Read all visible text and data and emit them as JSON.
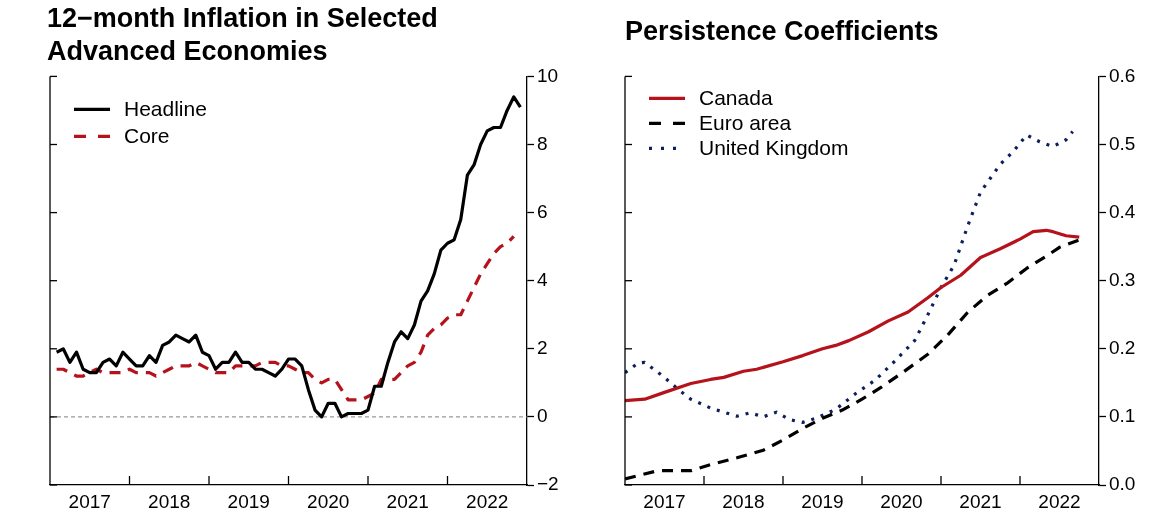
{
  "chart_data": [
    {
      "type": "line",
      "title": "12−month Inflation in Selected Advanced Economies",
      "x": [
        "2017-02",
        "2017-03",
        "2017-04",
        "2017-05",
        "2017-06",
        "2017-07",
        "2017-08",
        "2017-09",
        "2017-10",
        "2017-11",
        "2017-12",
        "2018-01",
        "2018-02",
        "2018-03",
        "2018-04",
        "2018-05",
        "2018-06",
        "2018-07",
        "2018-08",
        "2018-09",
        "2018-10",
        "2018-11",
        "2018-12",
        "2019-01",
        "2019-02",
        "2019-03",
        "2019-04",
        "2019-05",
        "2019-06",
        "2019-07",
        "2019-08",
        "2019-09",
        "2019-10",
        "2019-11",
        "2019-12",
        "2020-01",
        "2020-02",
        "2020-03",
        "2020-04",
        "2020-05",
        "2020-06",
        "2020-07",
        "2020-08",
        "2020-09",
        "2020-10",
        "2020-11",
        "2020-12",
        "2021-01",
        "2021-02",
        "2021-03",
        "2021-04",
        "2021-05",
        "2021-06",
        "2021-07",
        "2021-08",
        "2021-09",
        "2021-10",
        "2021-11",
        "2021-12",
        "2022-01",
        "2022-02",
        "2022-03",
        "2022-04",
        "2022-05",
        "2022-06",
        "2022-07",
        "2022-08",
        "2022-09",
        "2022-10",
        "2022-11",
        "2022-12"
      ],
      "series": [
        {
          "name": "Headline",
          "color": "#000000",
          "line_style": "solid",
          "values": [
            1.9,
            2.0,
            1.6,
            1.9,
            1.4,
            1.3,
            1.3,
            1.6,
            1.7,
            1.5,
            1.9,
            1.7,
            1.5,
            1.5,
            1.8,
            1.6,
            2.1,
            2.2,
            2.4,
            2.3,
            2.2,
            2.4,
            1.9,
            1.8,
            1.4,
            1.6,
            1.6,
            1.9,
            1.6,
            1.6,
            1.4,
            1.4,
            1.3,
            1.2,
            1.4,
            1.7,
            1.7,
            1.5,
            0.8,
            0.2,
            0.0,
            0.4,
            0.4,
            0.0,
            0.1,
            0.1,
            0.1,
            0.2,
            0.9,
            0.9,
            1.6,
            2.2,
            2.5,
            2.3,
            2.7,
            3.4,
            3.7,
            4.2,
            4.9,
            5.1,
            5.2,
            5.8,
            7.1,
            7.4,
            8.0,
            8.4,
            8.5,
            8.5,
            9.0,
            9.4,
            9.1
          ]
        },
        {
          "name": "Core",
          "color": "#b5121b",
          "line_style": "dashed",
          "values": [
            1.4,
            1.4,
            1.3,
            1.2,
            1.2,
            1.3,
            1.4,
            1.3,
            1.3,
            1.3,
            1.3,
            1.4,
            1.3,
            1.3,
            1.3,
            1.2,
            1.3,
            1.4,
            1.5,
            1.5,
            1.5,
            1.6,
            1.5,
            1.4,
            1.3,
            1.3,
            1.3,
            1.5,
            1.5,
            1.5,
            1.5,
            1.6,
            1.6,
            1.6,
            1.5,
            1.5,
            1.4,
            1.3,
            1.3,
            1.1,
            1.0,
            1.1,
            1.1,
            0.8,
            0.5,
            0.5,
            0.5,
            0.6,
            0.7,
            1.1,
            1.1,
            1.1,
            1.3,
            1.5,
            1.6,
            1.9,
            2.4,
            2.6,
            2.7,
            2.9,
            3.0,
            3.0,
            3.4,
            3.8,
            4.2,
            4.5,
            4.8,
            5.0,
            5.1,
            5.3,
            null
          ]
        }
      ],
      "xlim": [
        "2017-01",
        "2023-01"
      ],
      "xticks": [
        {
          "value": "2017-07",
          "label": "2017"
        },
        {
          "value": "2018-01",
          "label": null
        },
        {
          "value": "2018-07",
          "label": "2018"
        },
        {
          "value": "2019-01",
          "label": null
        },
        {
          "value": "2019-07",
          "label": "2019"
        },
        {
          "value": "2020-01",
          "label": null
        },
        {
          "value": "2020-07",
          "label": "2020"
        },
        {
          "value": "2021-01",
          "label": null
        },
        {
          "value": "2021-07",
          "label": "2021"
        },
        {
          "value": "2022-01",
          "label": null
        },
        {
          "value": "2022-07",
          "label": "2022"
        }
      ],
      "ylim": [
        -2,
        10
      ],
      "yticks": [
        {
          "value": -2,
          "label": "−2"
        },
        0,
        2,
        4,
        6,
        8,
        10
      ],
      "ref_lines": [
        {
          "axis": "y",
          "value": 0,
          "color": "#808080",
          "line_style": "dashed"
        }
      ],
      "grid": false,
      "legend": "top left",
      "marker": "none"
    },
    {
      "type": "line",
      "title": "Persistence Coefficients",
      "series": [
        {
          "name": "Canada",
          "color": "#b5121b",
          "line_style": "solid",
          "x": [
            "2017-01",
            "2017-04",
            "2017-07",
            "2017-11",
            "2018-02",
            "2018-04",
            "2018-07",
            "2018-09",
            "2019-01",
            "2019-04",
            "2019-07",
            "2019-09",
            "2019-11",
            "2020-02",
            "2020-05",
            "2020-08",
            "2020-11",
            "2021-01",
            "2021-04",
            "2021-07",
            "2021-10",
            "2022-01",
            "2022-03",
            "2022-05",
            "2022-06",
            "2022-08",
            "2022-10"
          ],
          "values": [
            0.124,
            0.126,
            0.136,
            0.149,
            0.155,
            0.158,
            0.167,
            0.17,
            0.181,
            0.19,
            0.2,
            0.205,
            0.212,
            0.225,
            0.241,
            0.254,
            0.275,
            0.29,
            0.308,
            0.334,
            0.347,
            0.361,
            0.372,
            0.374,
            0.372,
            0.366,
            0.364
          ]
        },
        {
          "name": "Euro area",
          "color": "#000000",
          "line_style": "dashed",
          "x": [
            "2017-01",
            "2017-06",
            "2017-11",
            "2018-02",
            "2018-06",
            "2018-10",
            "2019-01",
            "2019-04",
            "2019-07",
            "2019-10",
            "2020-01",
            "2020-04",
            "2020-07",
            "2020-11",
            "2021-02",
            "2021-05",
            "2021-08",
            "2021-11",
            "2022-02",
            "2022-05",
            "2022-07",
            "2022-10"
          ],
          "values": [
            0.009,
            0.021,
            0.021,
            0.03,
            0.04,
            0.051,
            0.066,
            0.083,
            0.098,
            0.11,
            0.126,
            0.144,
            0.164,
            0.192,
            0.22,
            0.253,
            0.278,
            0.296,
            0.318,
            0.336,
            0.349,
            0.36
          ]
        },
        {
          "name": "United Kingdom",
          "color": "#0d1f5c",
          "line_style": "dotted",
          "x": [
            "2017-01",
            "2017-03",
            "2017-04",
            "2017-07",
            "2017-09",
            "2017-11",
            "2018-02",
            "2018-06",
            "2018-08",
            "2018-10",
            "2018-12",
            "2019-02",
            "2019-04",
            "2019-06",
            "2019-09",
            "2019-12",
            "2020-03",
            "2020-06",
            "2020-09",
            "2020-11",
            "2021-01",
            "2021-03",
            "2021-05",
            "2021-07",
            "2021-10",
            "2021-12",
            "2022-02",
            "2022-04",
            "2022-06",
            "2022-08",
            "2022-09"
          ],
          "values": [
            0.165,
            0.179,
            0.18,
            0.158,
            0.141,
            0.126,
            0.113,
            0.101,
            0.106,
            0.1,
            0.107,
            0.096,
            0.092,
            0.098,
            0.111,
            0.134,
            0.154,
            0.182,
            0.212,
            0.25,
            0.29,
            0.323,
            0.379,
            0.43,
            0.471,
            0.49,
            0.514,
            0.504,
            0.497,
            0.507,
            0.519
          ]
        }
      ],
      "xlim": [
        "2017-01",
        "2023-01"
      ],
      "xticks": [
        {
          "value": "2017-07",
          "label": "2017"
        },
        {
          "value": "2018-01",
          "label": null
        },
        {
          "value": "2018-07",
          "label": "2018"
        },
        {
          "value": "2019-01",
          "label": null
        },
        {
          "value": "2019-07",
          "label": "2019"
        },
        {
          "value": "2020-01",
          "label": null
        },
        {
          "value": "2020-07",
          "label": "2020"
        },
        {
          "value": "2021-01",
          "label": null
        },
        {
          "value": "2021-07",
          "label": "2021"
        },
        {
          "value": "2022-01",
          "label": null
        },
        {
          "value": "2022-07",
          "label": "2022"
        }
      ],
      "ylim": [
        0,
        0.6
      ],
      "yticks": [
        {
          "value": 0,
          "label": "0.0"
        },
        0.1,
        0.2,
        0.3,
        0.4,
        0.5,
        0.6
      ],
      "grid": false,
      "legend": "top left",
      "marker": "none"
    }
  ]
}
